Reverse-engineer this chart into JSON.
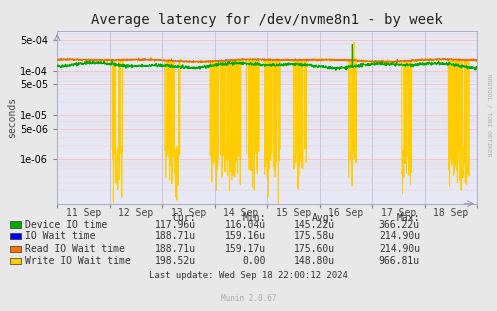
{
  "title": "Average latency for /dev/nvme8n1 - by week",
  "ylabel": "seconds",
  "background_color": "#e8e8e8",
  "plot_bg_color": "#e8e8f4",
  "x_ticks_labels": [
    "11 Sep",
    "12 Sep",
    "13 Sep",
    "14 Sep",
    "15 Sep",
    "16 Sep",
    "17 Sep",
    "18 Sep"
  ],
  "legend_entries": [
    {
      "label": "Device IO time",
      "color": "#00aa00"
    },
    {
      "label": "IO Wait time",
      "color": "#0000ff"
    },
    {
      "label": "Read IO Wait time",
      "color": "#ff7700"
    },
    {
      "label": "Write IO Wait time",
      "color": "#ffcc00"
    }
  ],
  "table_headers": [
    "Cur:",
    "Min:",
    "Avg:",
    "Max:"
  ],
  "table_rows": [
    [
      "117.96u",
      "116.04u",
      "145.22u",
      "366.22u"
    ],
    [
      "188.71u",
      "159.16u",
      "175.58u",
      "214.90u"
    ],
    [
      "188.71u",
      "159.17u",
      "175.60u",
      "214.90u"
    ],
    [
      "198.52u",
      "0.00",
      "148.80u",
      "966.81u"
    ]
  ],
  "last_update": "Last update: Wed Sep 18 22:00:12 2024",
  "munin_version": "Munin 2.0.67",
  "rrdtool_label": "RRDTOOL / TOBI OETIKER",
  "title_fontsize": 10,
  "axis_label_fontsize": 7,
  "tick_fontsize": 7,
  "legend_fontsize": 7,
  "table_fontsize": 7
}
